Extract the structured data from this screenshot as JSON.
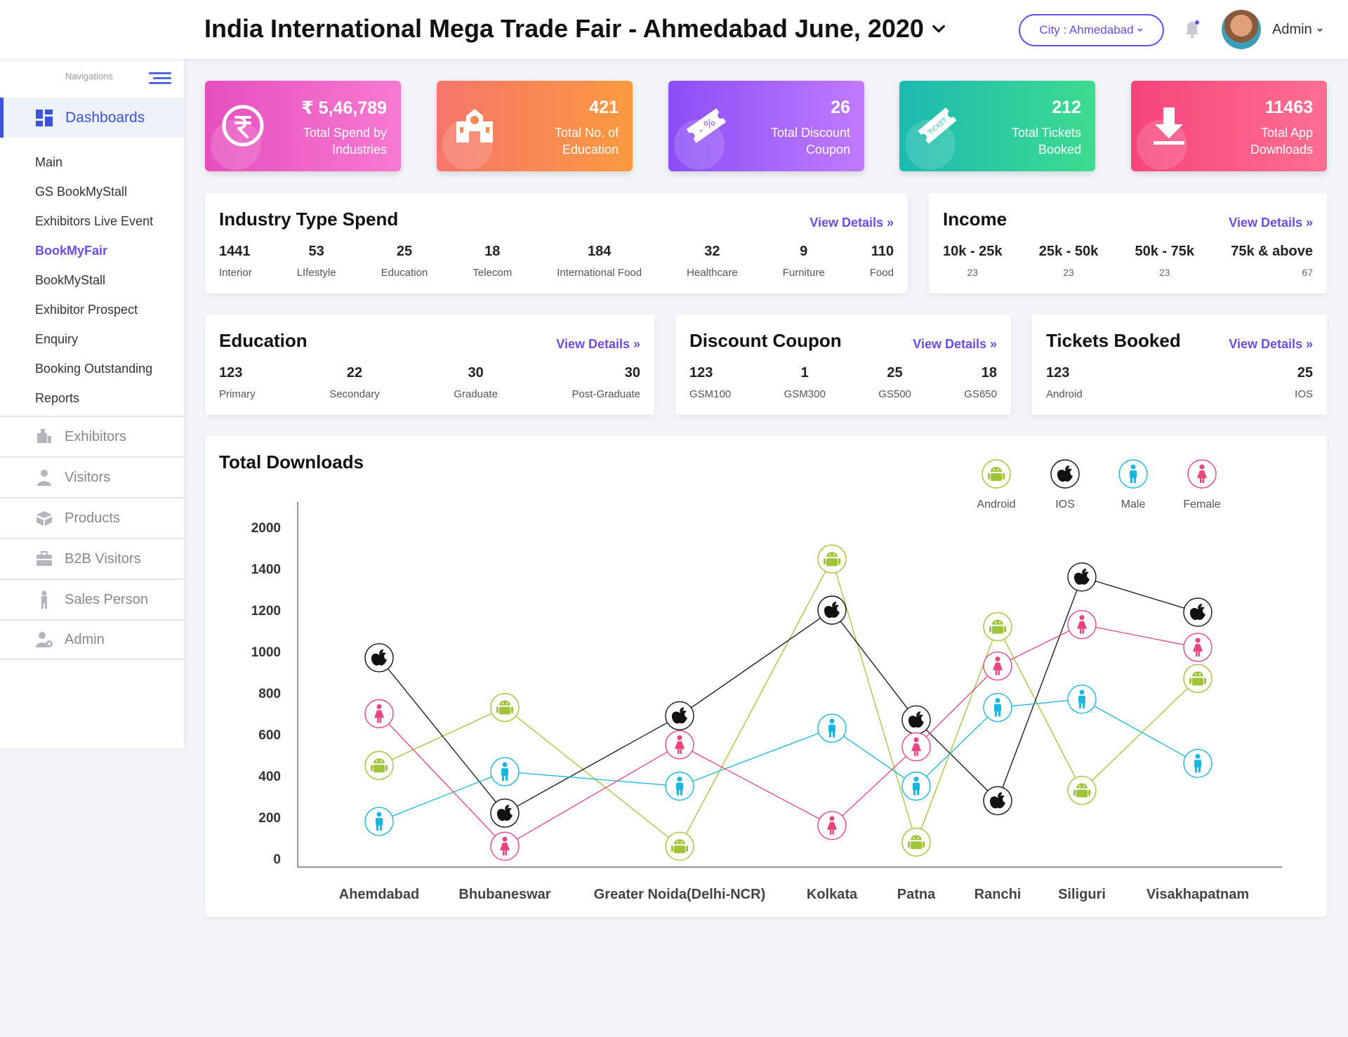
{
  "header": {
    "title": "India International Mega Trade Fair - Ahmedabad June, 2020",
    "city_label": "City : Ahmedabad",
    "user_name": "Admin"
  },
  "sidebar": {
    "heading": "Navigations",
    "dashboards_label": "Dashboards",
    "sub_items": [
      {
        "label": "Main",
        "active": false
      },
      {
        "label": "GS BookMyStall",
        "active": false
      },
      {
        "label": "Exhibitors Live Event",
        "active": false
      },
      {
        "label": "BookMyFair",
        "active": true
      },
      {
        "label": "BookMyStall",
        "active": false
      },
      {
        "label": "Exhibitor Prospect",
        "active": false
      },
      {
        "label": "Enquiry",
        "active": false
      },
      {
        "label": "Booking Outstanding",
        "active": false
      },
      {
        "label": "Reports",
        "active": false
      }
    ],
    "main_items": [
      {
        "label": "Exhibitors",
        "icon": "exhibitors-icon"
      },
      {
        "label": "Visitors",
        "icon": "visitors-icon"
      },
      {
        "label": "Products",
        "icon": "products-icon"
      },
      {
        "label": "B2B Visitors",
        "icon": "b2b-icon"
      },
      {
        "label": "Sales Person",
        "icon": "sales-person-icon"
      },
      {
        "label": "Admin",
        "icon": "admin-icon"
      }
    ]
  },
  "stats": [
    {
      "value": "₹ 5,46,789",
      "label": "Total Spend by Industries",
      "icon": "rupee-icon",
      "colors": [
        "#e64fbf",
        "#f77ad0"
      ]
    },
    {
      "value": "421",
      "label": "Total No. of Education",
      "icon": "school-icon",
      "colors": [
        "#f5766a",
        "#fb9a3f"
      ]
    },
    {
      "value": "26",
      "label": "Total Discount Coupon",
      "icon": "coupon-icon",
      "colors": [
        "#8b4ef5",
        "#c07bff"
      ]
    },
    {
      "value": "212",
      "label": "Total Tickets Booked",
      "icon": "ticket-icon",
      "colors": [
        "#1bbab0",
        "#3ddc8e"
      ]
    },
    {
      "value": "11463",
      "label": "Total App Downloads",
      "icon": "download-icon",
      "colors": [
        "#f5457a",
        "#ff6f92"
      ]
    }
  ],
  "industry": {
    "title": "Industry Type Spend",
    "view": "View Details »",
    "items": [
      {
        "num": "1441",
        "label": "Interior"
      },
      {
        "num": "53",
        "label": "LIfestyle"
      },
      {
        "num": "25",
        "label": "Education"
      },
      {
        "num": "18",
        "label": "Telecom"
      },
      {
        "num": "184",
        "label": "International Food"
      },
      {
        "num": "32",
        "label": "Healthcare"
      },
      {
        "num": "9",
        "label": "Furniture"
      },
      {
        "num": "110",
        "label": "Food"
      }
    ]
  },
  "income": {
    "title": "Income",
    "view": "View Details »",
    "items": [
      {
        "num": "10k - 25k",
        "label": "23"
      },
      {
        "num": "25k - 50k",
        "label": "23"
      },
      {
        "num": "50k - 75k",
        "label": "23"
      },
      {
        "num": "75k & above",
        "label": "67"
      }
    ]
  },
  "education": {
    "title": "Education",
    "view": "View Details »",
    "items": [
      {
        "num": "123",
        "label": "Primary"
      },
      {
        "num": "22",
        "label": "Secondary"
      },
      {
        "num": "30",
        "label": "Graduate"
      },
      {
        "num": "30",
        "label": "Post-Graduate"
      }
    ]
  },
  "coupon": {
    "title": "Discount Coupon",
    "view": "View Details »",
    "items": [
      {
        "num": "123",
        "label": "GSM100"
      },
      {
        "num": "1",
        "label": "GSM300"
      },
      {
        "num": "25",
        "label": "GS500"
      },
      {
        "num": "18",
        "label": "GS650"
      }
    ]
  },
  "tickets": {
    "title": "Tickets Booked",
    "view": "View Details »",
    "items": [
      {
        "num": "123",
        "label": "Android"
      },
      {
        "num": "25",
        "label": "IOS"
      }
    ]
  },
  "downloads": {
    "title": "Total Downloads"
  },
  "chart_data": {
    "type": "line",
    "title": "Total Downloads",
    "categories": [
      "Ahemdabad",
      "Bhubaneswar",
      "Greater Noida(Delhi-NCR)",
      "Kolkata",
      "Patna",
      "Ranchi",
      "Siliguri",
      "Visakhapatnam"
    ],
    "y_ticks": [
      "2000",
      "1400",
      "1200",
      "1000",
      "800",
      "600",
      "400",
      "200",
      "0"
    ],
    "series": [
      {
        "name": "Android",
        "color": "#9fc43a",
        "values": [
          450,
          730,
          60,
          1540,
          80,
          1120,
          330,
          870
        ]
      },
      {
        "name": "IOS",
        "color": "#111111",
        "values": [
          970,
          220,
          690,
          1200,
          670,
          280,
          1360,
          1190
        ]
      },
      {
        "name": "Male",
        "color": "#1ab6df",
        "values": [
          180,
          420,
          350,
          630,
          350,
          730,
          770,
          460
        ]
      },
      {
        "name": "Female",
        "color": "#e8457f",
        "values": [
          700,
          60,
          550,
          160,
          540,
          930,
          1130,
          1020
        ]
      }
    ]
  }
}
